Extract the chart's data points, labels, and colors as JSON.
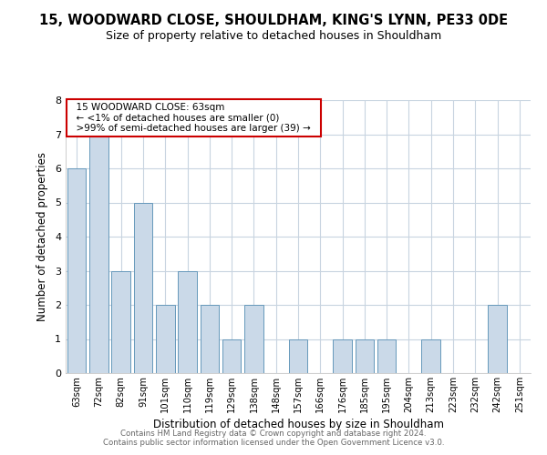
{
  "title": "15, WOODWARD CLOSE, SHOULDHAM, KING'S LYNN, PE33 0DE",
  "subtitle": "Size of property relative to detached houses in Shouldham",
  "xlabel": "Distribution of detached houses by size in Shouldham",
  "ylabel": "Number of detached properties",
  "bar_labels": [
    "63sqm",
    "72sqm",
    "82sqm",
    "91sqm",
    "101sqm",
    "110sqm",
    "119sqm",
    "129sqm",
    "138sqm",
    "148sqm",
    "157sqm",
    "166sqm",
    "176sqm",
    "185sqm",
    "195sqm",
    "204sqm",
    "213sqm",
    "223sqm",
    "232sqm",
    "242sqm",
    "251sqm"
  ],
  "bar_values": [
    6,
    7,
    3,
    5,
    2,
    3,
    2,
    1,
    2,
    0,
    1,
    0,
    1,
    1,
    1,
    0,
    1,
    0,
    0,
    2,
    0
  ],
  "bar_color": "#cad9e8",
  "bar_edge_color": "#6699bb",
  "annotation_title": "15 WOODWARD CLOSE: 63sqm",
  "annotation_line1": "← <1% of detached houses are smaller (0)",
  "annotation_line2": ">99% of semi-detached houses are larger (39) →",
  "annotation_box_edge_color": "#cc0000",
  "ylim": [
    0,
    8
  ],
  "yticks": [
    0,
    1,
    2,
    3,
    4,
    5,
    6,
    7,
    8
  ],
  "footer_line1": "Contains HM Land Registry data © Crown copyright and database right 2024.",
  "footer_line2": "Contains public sector information licensed under the Open Government Licence v3.0.",
  "bg_color": "#ffffff",
  "grid_color": "#c8d4e0",
  "title_fontsize": 10.5,
  "subtitle_fontsize": 9
}
